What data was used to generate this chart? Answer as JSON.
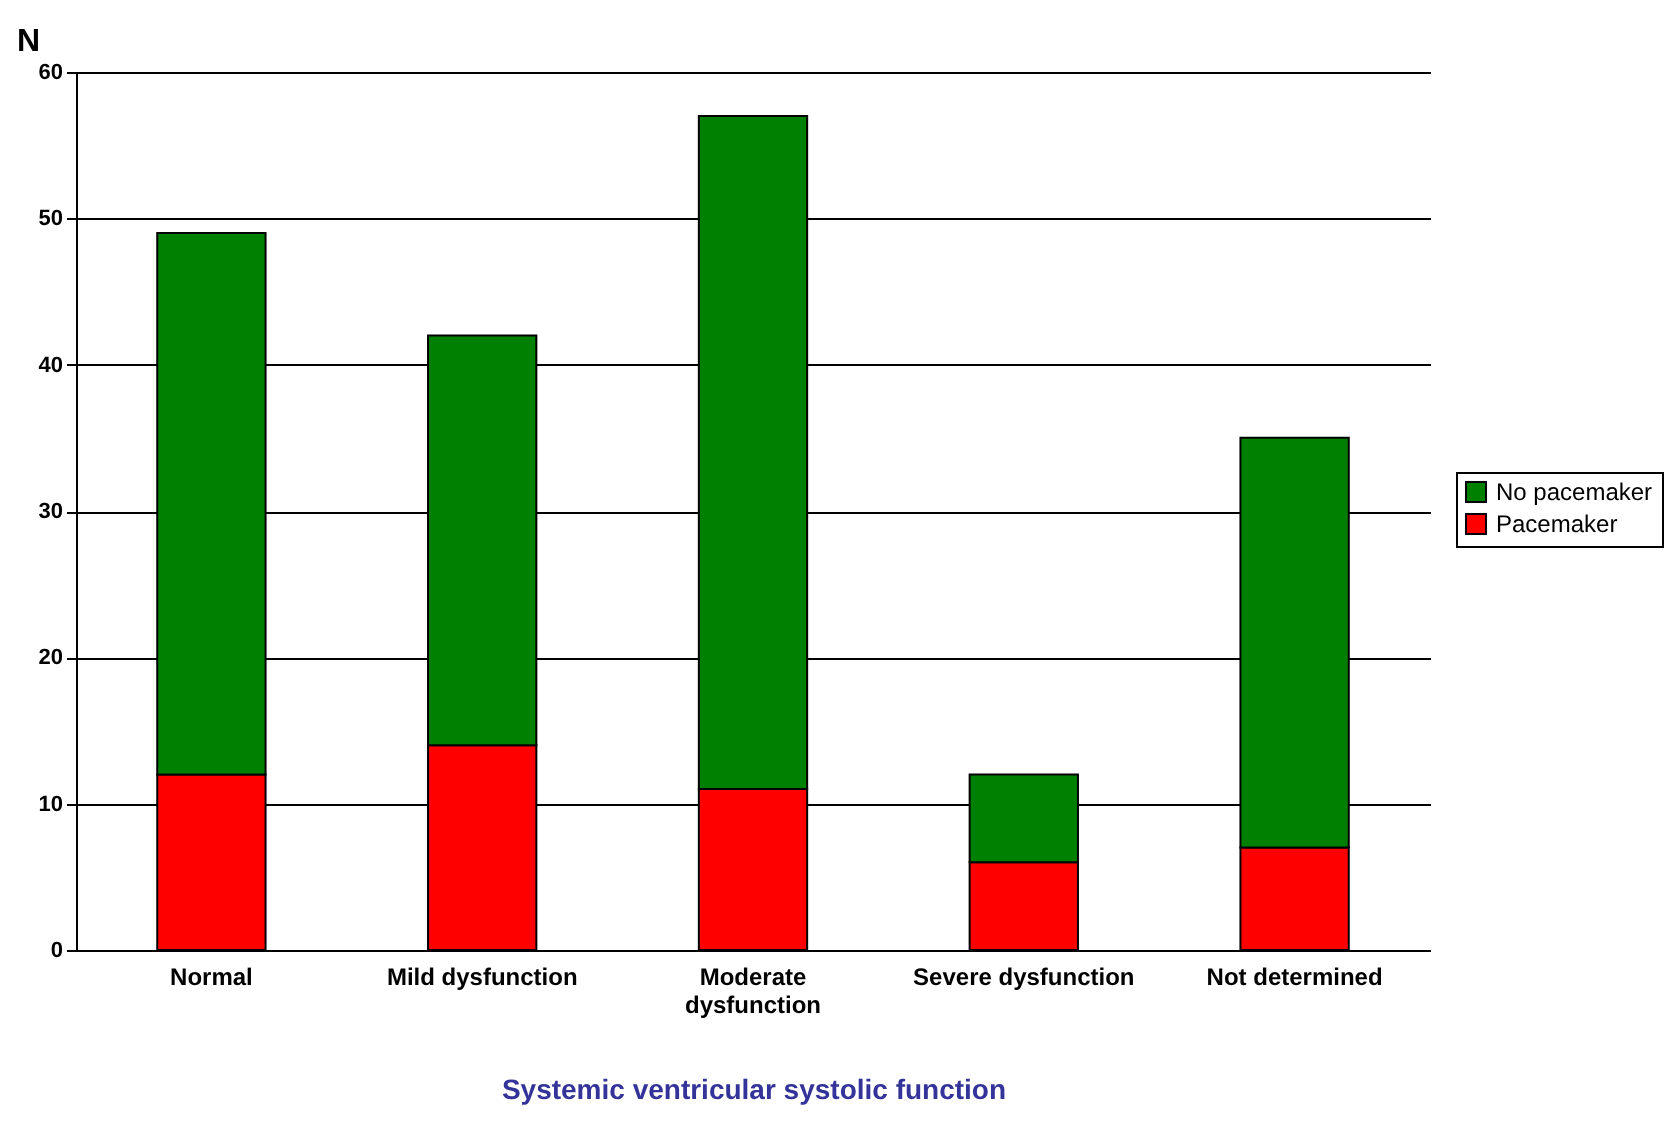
{
  "chart_data": {
    "type": "bar",
    "stacked": true,
    "xlabel": "Systemic ventricular systolic function",
    "ylabel": "N",
    "categories": [
      "Normal",
      "Mild dysfunction",
      "Moderate\ndysfunction",
      "Severe dysfunction",
      "Not determined"
    ],
    "series": [
      {
        "name": "Pacemaker",
        "color": "#ff0000",
        "values": [
          12,
          14,
          11,
          6,
          7
        ]
      },
      {
        "name": "No pacemaker",
        "color": "#008000",
        "values": [
          37,
          28,
          46,
          6,
          28
        ]
      }
    ],
    "ylim": [
      0,
      60
    ],
    "yticks": [
      0,
      10,
      20,
      30,
      40,
      50,
      60
    ],
    "grid": "y",
    "legend": "right"
  }
}
